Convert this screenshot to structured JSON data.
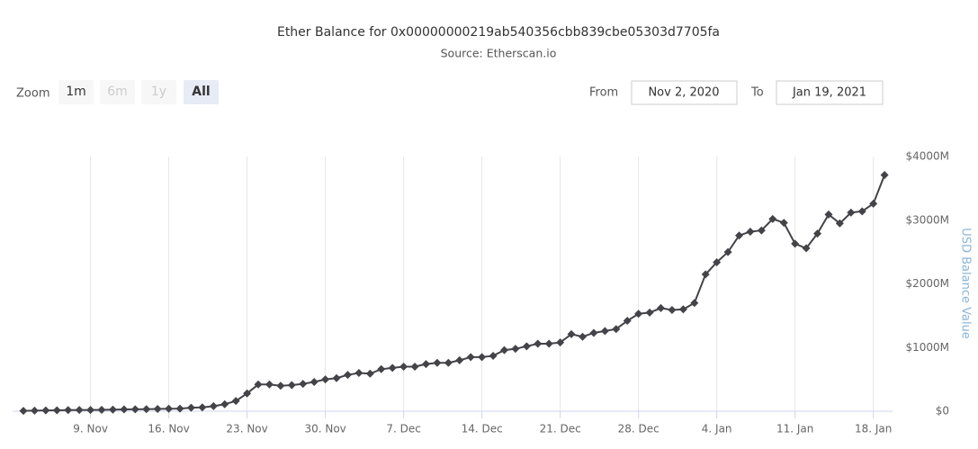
{
  "range_selector": {
    "zoom_label": "Zoom",
    "buttons": [
      "1m",
      "6m",
      "1y",
      "All"
    ],
    "from_label": "From",
    "from": "Nov 2, 2020",
    "to_label": "To",
    "to": "Jan 19, 2021"
  },
  "chart_data": {
    "type": "line",
    "title": "Ether Balance for 0x00000000219ab540356cbb839cbe05303d7705fa",
    "subtitle": "Source: Etherscan.io",
    "y_label": "USD Balance Value",
    "categories": [
      null,
      null,
      null,
      null,
      null,
      null,
      "9. Nov",
      null,
      null,
      null,
      null,
      null,
      null,
      "16. Nov",
      null,
      null,
      null,
      null,
      null,
      null,
      "23. Nov",
      null,
      null,
      null,
      null,
      null,
      null,
      "30. Nov",
      null,
      null,
      null,
      null,
      null,
      null,
      "7. Dec",
      null,
      null,
      null,
      null,
      null,
      null,
      "14. Dec",
      null,
      null,
      null,
      null,
      null,
      null,
      "21. Dec",
      null,
      null,
      null,
      null,
      null,
      null,
      "28. Dec",
      null,
      null,
      null,
      null,
      null,
      null,
      "4. Jan",
      null,
      null,
      null,
      null,
      null,
      null,
      "11. Jan",
      null,
      null,
      null,
      null,
      null,
      null,
      "18. Jan",
      null
    ],
    "values": [
      5,
      8,
      12,
      15,
      18,
      20,
      20,
      22,
      25,
      28,
      30,
      32,
      35,
      38,
      40,
      55,
      60,
      80,
      110,
      160,
      280,
      420,
      420,
      400,
      410,
      430,
      460,
      500,
      520,
      570,
      600,
      590,
      660,
      680,
      700,
      700,
      740,
      760,
      760,
      800,
      850,
      850,
      870,
      960,
      980,
      1020,
      1060,
      1060,
      1080,
      1210,
      1170,
      1230,
      1260,
      1290,
      1420,
      1530,
      1550,
      1620,
      1590,
      1600,
      1700,
      2150,
      2340,
      2500,
      2760,
      2820,
      2840,
      3020,
      2960,
      2630,
      2560,
      2790,
      3090,
      2950,
      3120,
      3140,
      3260,
      3710
    ],
    "color": "#434348",
    "ylim": [
      0,
      4000
    ],
    "yticks": [
      {
        "value": 0,
        "label": "$0"
      },
      {
        "value": 1000,
        "label": "$1000M"
      },
      {
        "value": 2000,
        "label": "$2000M"
      },
      {
        "value": 3000,
        "label": "$3000M"
      },
      {
        "value": 4000,
        "label": "$4000M"
      }
    ],
    "grid": true
  }
}
